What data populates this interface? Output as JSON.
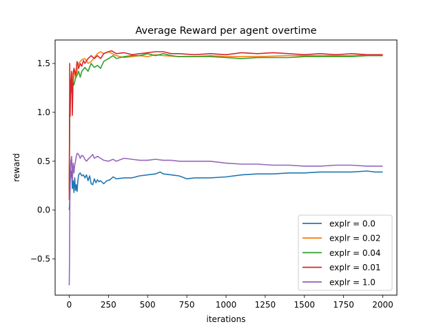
{
  "chart_data": {
    "type": "line",
    "title": "Average Reward per agent overtime",
    "xlabel": "iterations",
    "ylabel": "reward",
    "xlim": [
      -90,
      2090
    ],
    "ylim": [
      -0.87,
      1.74
    ],
    "xticks": [
      0,
      250,
      500,
      750,
      1000,
      1250,
      1500,
      1750,
      2000
    ],
    "yticks": [
      -0.5,
      0.0,
      0.5,
      1.0,
      1.5
    ],
    "xtick_labels": [
      "0",
      "250",
      "500",
      "750",
      "1000",
      "1250",
      "1500",
      "1750",
      "2000"
    ],
    "ytick_labels": [
      "−0.5",
      "0.0",
      "0.5",
      "1.0",
      "1.5"
    ],
    "grid": false,
    "legend_position": "lower right",
    "series": [
      {
        "name": "explr = 0.0",
        "color": "#1f77b4",
        "x": [
          0,
          3,
          6,
          10,
          15,
          20,
          25,
          30,
          35,
          40,
          45,
          50,
          55,
          60,
          70,
          80,
          90,
          100,
          110,
          120,
          130,
          140,
          150,
          160,
          170,
          180,
          190,
          200,
          220,
          240,
          260,
          280,
          300,
          350,
          400,
          450,
          500,
          550,
          580,
          600,
          650,
          700,
          750,
          800,
          850,
          900,
          1000,
          1100,
          1200,
          1300,
          1400,
          1500,
          1600,
          1700,
          1800,
          1900,
          1950,
          2000
        ],
        "values": [
          0.0,
          0.1,
          0.3,
          0.35,
          0.4,
          0.22,
          0.3,
          0.18,
          0.33,
          0.2,
          0.26,
          0.19,
          0.3,
          0.36,
          0.38,
          0.35,
          0.36,
          0.33,
          0.36,
          0.3,
          0.35,
          0.27,
          0.26,
          0.32,
          0.28,
          0.31,
          0.29,
          0.3,
          0.27,
          0.3,
          0.31,
          0.34,
          0.32,
          0.33,
          0.33,
          0.35,
          0.36,
          0.37,
          0.39,
          0.37,
          0.36,
          0.35,
          0.32,
          0.33,
          0.33,
          0.33,
          0.34,
          0.36,
          0.37,
          0.37,
          0.38,
          0.38,
          0.39,
          0.39,
          0.39,
          0.4,
          0.39,
          0.39
        ]
      },
      {
        "name": "explr = 0.02",
        "color": "#ff7f0e",
        "x": [
          0,
          3,
          6,
          10,
          15,
          20,
          25,
          30,
          40,
          50,
          60,
          80,
          100,
          120,
          140,
          160,
          180,
          200,
          220,
          250,
          300,
          350,
          400,
          450,
          500,
          550,
          600,
          700,
          800,
          900,
          1000,
          1200,
          1400,
          1600,
          1800,
          2000
        ],
        "values": [
          0.3,
          1.1,
          1.3,
          1.2,
          1.4,
          1.25,
          1.3,
          1.45,
          1.35,
          1.42,
          1.5,
          1.54,
          1.55,
          1.5,
          1.52,
          1.56,
          1.6,
          1.62,
          1.6,
          1.62,
          1.58,
          1.56,
          1.57,
          1.58,
          1.57,
          1.59,
          1.58,
          1.57,
          1.57,
          1.58,
          1.57,
          1.57,
          1.58,
          1.58,
          1.58,
          1.59
        ]
      },
      {
        "name": "explr = 0.04",
        "color": "#2ca02c",
        "x": [
          0,
          3,
          6,
          10,
          15,
          20,
          25,
          30,
          40,
          50,
          60,
          70,
          80,
          100,
          120,
          140,
          160,
          180,
          200,
          220,
          250,
          280,
          300,
          350,
          400,
          450,
          500,
          550,
          600,
          650,
          700,
          800,
          900,
          1000,
          1100,
          1200,
          1300,
          1400,
          1500,
          1600,
          1700,
          1800,
          1900,
          2000
        ],
        "values": [
          0.2,
          1.0,
          1.3,
          1.2,
          1.35,
          1.22,
          1.3,
          1.28,
          1.35,
          1.38,
          1.42,
          1.36,
          1.42,
          1.46,
          1.42,
          1.5,
          1.46,
          1.48,
          1.45,
          1.52,
          1.55,
          1.58,
          1.55,
          1.57,
          1.58,
          1.58,
          1.6,
          1.58,
          1.6,
          1.58,
          1.57,
          1.57,
          1.57,
          1.56,
          1.55,
          1.56,
          1.56,
          1.56,
          1.57,
          1.57,
          1.57,
          1.57,
          1.58,
          1.58
        ]
      },
      {
        "name": "explr = 0.01",
        "color": "#d62728",
        "x": [
          0,
          3,
          6,
          10,
          15,
          20,
          25,
          30,
          40,
          50,
          60,
          70,
          80,
          90,
          100,
          120,
          140,
          160,
          180,
          200,
          220,
          250,
          270,
          300,
          350,
          400,
          450,
          500,
          550,
          600,
          650,
          700,
          800,
          900,
          1000,
          1100,
          1200,
          1300,
          1400,
          1500,
          1600,
          1700,
          1800,
          1900,
          2000
        ],
        "values": [
          0.1,
          1.5,
          0.96,
          1.3,
          1.42,
          0.97,
          1.4,
          1.45,
          1.38,
          1.52,
          1.45,
          1.5,
          1.47,
          1.53,
          1.5,
          1.55,
          1.58,
          1.55,
          1.58,
          1.55,
          1.6,
          1.62,
          1.63,
          1.6,
          1.61,
          1.59,
          1.6,
          1.61,
          1.62,
          1.62,
          1.6,
          1.6,
          1.59,
          1.6,
          1.59,
          1.61,
          1.6,
          1.61,
          1.6,
          1.59,
          1.6,
          1.59,
          1.6,
          1.59,
          1.59
        ]
      },
      {
        "name": "explr = 1.0",
        "color": "#9467bd",
        "x": [
          0,
          2,
          4,
          6,
          8,
          10,
          15,
          20,
          25,
          30,
          35,
          40,
          45,
          50,
          60,
          70,
          80,
          90,
          100,
          110,
          120,
          140,
          150,
          160,
          180,
          200,
          220,
          250,
          280,
          300,
          350,
          400,
          450,
          500,
          550,
          600,
          650,
          700,
          800,
          900,
          1000,
          1100,
          1200,
          1300,
          1400,
          1500,
          1600,
          1700,
          1800,
          1900,
          2000
        ],
        "values": [
          -0.77,
          -0.5,
          0.1,
          0.2,
          0.4,
          0.5,
          0.55,
          0.3,
          0.48,
          0.38,
          0.46,
          0.5,
          0.55,
          0.58,
          0.57,
          0.53,
          0.56,
          0.55,
          0.52,
          0.5,
          0.52,
          0.55,
          0.57,
          0.53,
          0.55,
          0.53,
          0.51,
          0.5,
          0.52,
          0.5,
          0.53,
          0.52,
          0.51,
          0.51,
          0.52,
          0.51,
          0.51,
          0.5,
          0.5,
          0.5,
          0.48,
          0.47,
          0.47,
          0.46,
          0.46,
          0.45,
          0.45,
          0.46,
          0.46,
          0.45,
          0.45
        ]
      }
    ]
  }
}
